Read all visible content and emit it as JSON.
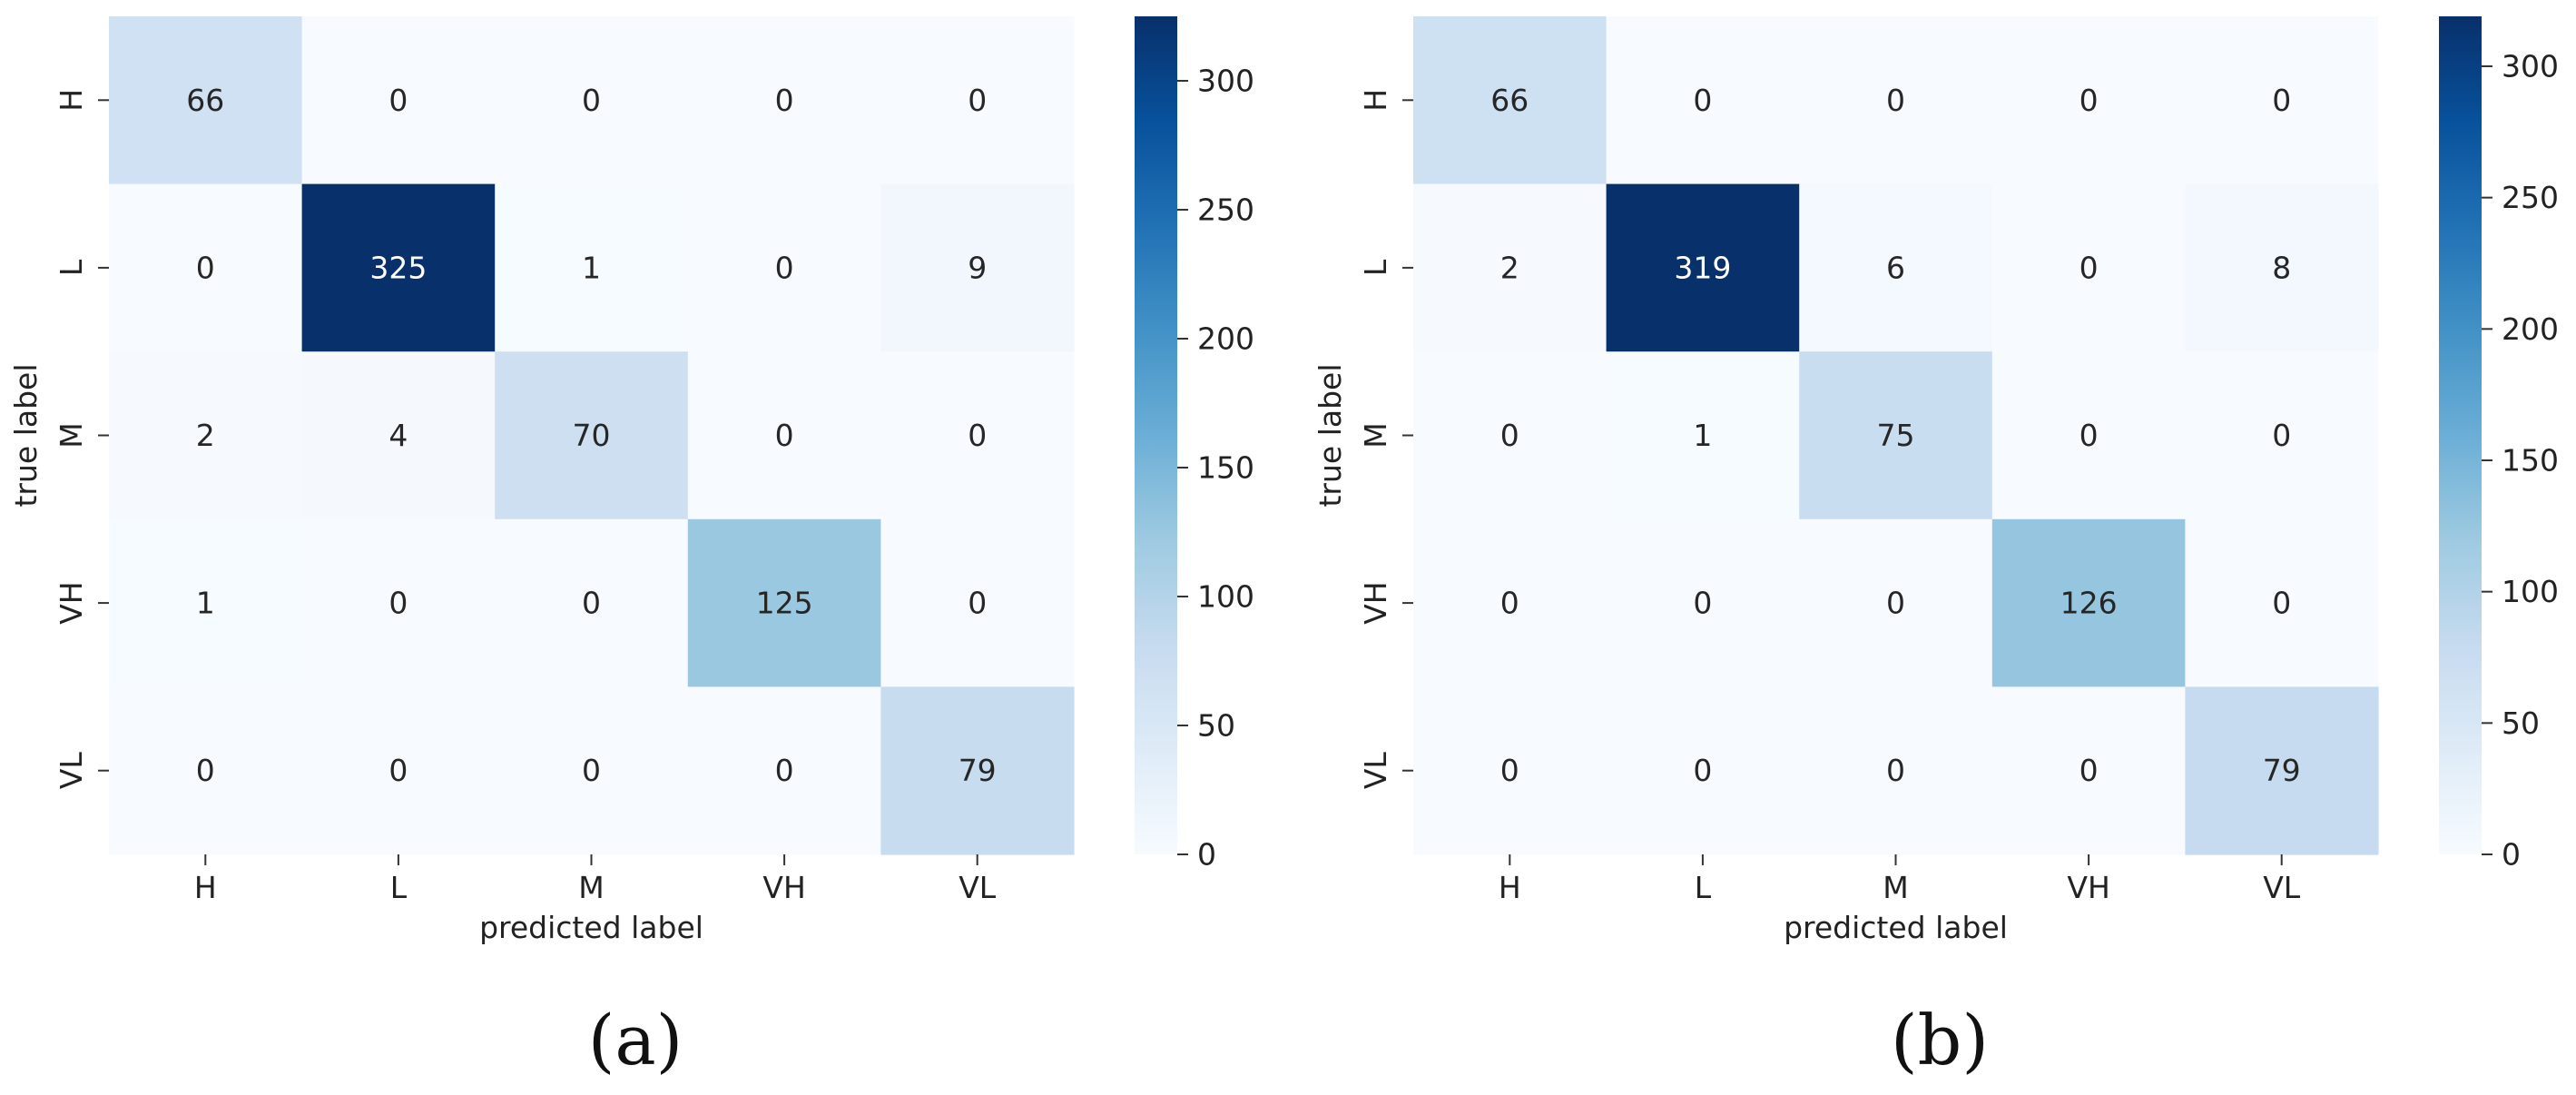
{
  "chart_data": [
    {
      "type": "heatmap",
      "panel_label": "(a)",
      "x_categories": [
        "H",
        "L",
        "M",
        "VH",
        "VL"
      ],
      "y_categories": [
        "H",
        "L",
        "M",
        "VH",
        "VL"
      ],
      "xlabel": "predicted label",
      "ylabel": "true label",
      "values": [
        [
          66,
          0,
          0,
          0,
          0
        ],
        [
          0,
          325,
          1,
          0,
          9
        ],
        [
          2,
          4,
          70,
          0,
          0
        ],
        [
          1,
          0,
          0,
          125,
          0
        ],
        [
          0,
          0,
          0,
          0,
          79
        ]
      ],
      "colorbar": {
        "min": 0,
        "max": 325,
        "ticks": [
          0,
          50,
          100,
          150,
          200,
          250,
          300
        ]
      },
      "colormap": [
        "#f7fbff",
        "#deebf7",
        "#c6dbef",
        "#9ecae1",
        "#6baed6",
        "#4292c6",
        "#2171b5",
        "#08519c",
        "#08306b"
      ]
    },
    {
      "type": "heatmap",
      "panel_label": "(b)",
      "x_categories": [
        "H",
        "L",
        "M",
        "VH",
        "VL"
      ],
      "y_categories": [
        "H",
        "L",
        "M",
        "VH",
        "VL"
      ],
      "xlabel": "predicted label",
      "ylabel": "true label",
      "values": [
        [
          66,
          0,
          0,
          0,
          0
        ],
        [
          2,
          319,
          6,
          0,
          8
        ],
        [
          0,
          1,
          75,
          0,
          0
        ],
        [
          0,
          0,
          0,
          126,
          0
        ],
        [
          0,
          0,
          0,
          0,
          79
        ]
      ],
      "colorbar": {
        "min": 0,
        "max": 319,
        "ticks": [
          0,
          50,
          100,
          150,
          200,
          250,
          300
        ]
      },
      "colormap": [
        "#f7fbff",
        "#deebf7",
        "#c6dbef",
        "#9ecae1",
        "#6baed6",
        "#4292c6",
        "#2171b5",
        "#08519c",
        "#08306b"
      ]
    }
  ]
}
